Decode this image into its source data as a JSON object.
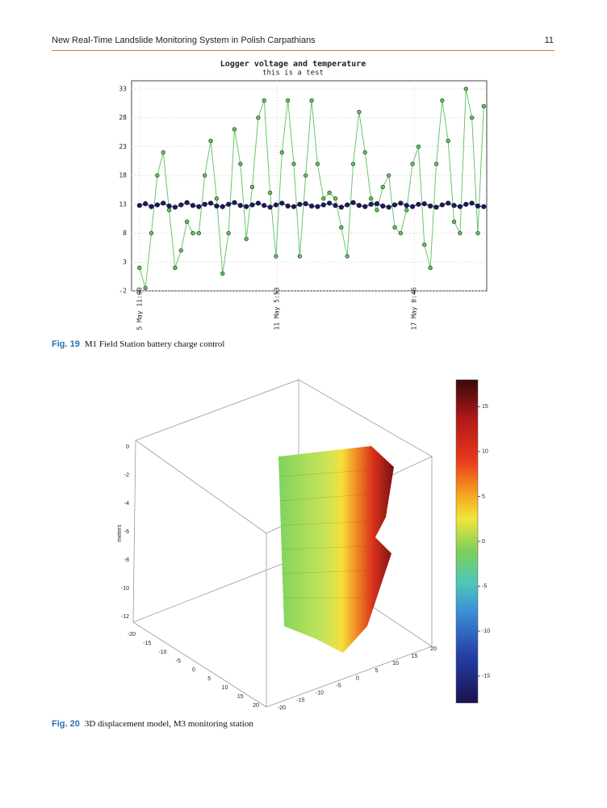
{
  "header": {
    "title": "New Real-Time Landslide Monitoring System in Polish Carpathians",
    "page": "11"
  },
  "chart_data": {
    "type": "line",
    "title": "Logger voltage and temperature",
    "subtitle": "this is a test",
    "x": [
      0,
      6,
      12,
      18,
      24,
      30,
      36,
      42,
      48,
      54,
      60,
      66,
      72,
      78,
      84,
      90,
      96,
      102,
      108,
      114,
      120,
      126,
      132,
      138,
      144,
      150,
      156,
      162,
      168,
      174,
      180,
      186,
      192,
      198,
      204,
      210,
      216,
      222,
      228,
      234,
      240,
      246,
      252,
      258,
      264,
      270,
      276,
      282,
      288,
      294,
      300,
      306,
      312,
      318,
      324,
      330,
      336,
      342,
      348
    ],
    "series": [
      {
        "color": "#6cc46c",
        "marker_color": "#2f6a2f",
        "values": [
          2,
          -1.5,
          8,
          18,
          22,
          12,
          2,
          5,
          10,
          8,
          8,
          18,
          24,
          14,
          1,
          8,
          26,
          20,
          7,
          16,
          28,
          31,
          15,
          4,
          22,
          31,
          20,
          4,
          18,
          31,
          20,
          14,
          15,
          14,
          9,
          4,
          20,
          29,
          22,
          14,
          12,
          16,
          18,
          9,
          8,
          12,
          20,
          23,
          6,
          2,
          20,
          31,
          24,
          10,
          8,
          33,
          28,
          8,
          30
        ]
      },
      {
        "color": "#1c1c50",
        "marker_color": "#1c1c50",
        "values": [
          12.8,
          13.1,
          12.6,
          12.9,
          13.2,
          12.7,
          12.5,
          12.9,
          13.3,
          12.8,
          12.6,
          13.0,
          13.2,
          12.7,
          12.6,
          13.0,
          13.3,
          12.8,
          12.6,
          12.9,
          13.2,
          12.8,
          12.5,
          12.9,
          13.2,
          12.7,
          12.6,
          13.0,
          13.1,
          12.7,
          12.6,
          12.9,
          13.2,
          12.8,
          12.5,
          12.9,
          13.3,
          12.8,
          12.6,
          13.0,
          13.1,
          12.7,
          12.5,
          12.9,
          13.2,
          12.8,
          12.6,
          13.0,
          13.1,
          12.7,
          12.5,
          12.9,
          13.2,
          12.8,
          12.6,
          13.0,
          13.2,
          12.7,
          12.6
        ]
      }
    ],
    "xlim": [
      -8,
      351
    ],
    "xticks": [
      {
        "value": 0,
        "label": "5 May 11:00"
      },
      {
        "value": 138.88,
        "label": "11 May 5:53"
      },
      {
        "value": 277.77,
        "label": "17 May 0:46"
      }
    ],
    "ylim": [
      -2,
      34.4
    ],
    "yticks": [
      -2,
      3,
      8,
      13,
      18,
      23,
      28,
      33
    ],
    "grid": true
  },
  "figure_19_caption": {
    "label": "Fig. 19",
    "text": "M1 Field Station battery charge control"
  },
  "figure_20": {
    "z_label": "meters",
    "z_ticks": [
      0,
      -2,
      -4,
      -6,
      -8,
      -10,
      -12
    ],
    "x_ticks": [
      -20,
      -15,
      -10,
      -5,
      0,
      5,
      10,
      15,
      20
    ],
    "y_ticks": [
      -20,
      -15,
      -10,
      -5,
      0,
      5,
      10,
      15,
      20
    ],
    "colorbar_lim": [
      -18,
      18
    ],
    "colorbar_ticks": [
      15,
      10,
      5,
      0,
      -5,
      -10,
      -15
    ]
  },
  "figure_20_caption": {
    "label": "Fig. 20",
    "text": "3D displacement model, M3 monitoring station"
  }
}
